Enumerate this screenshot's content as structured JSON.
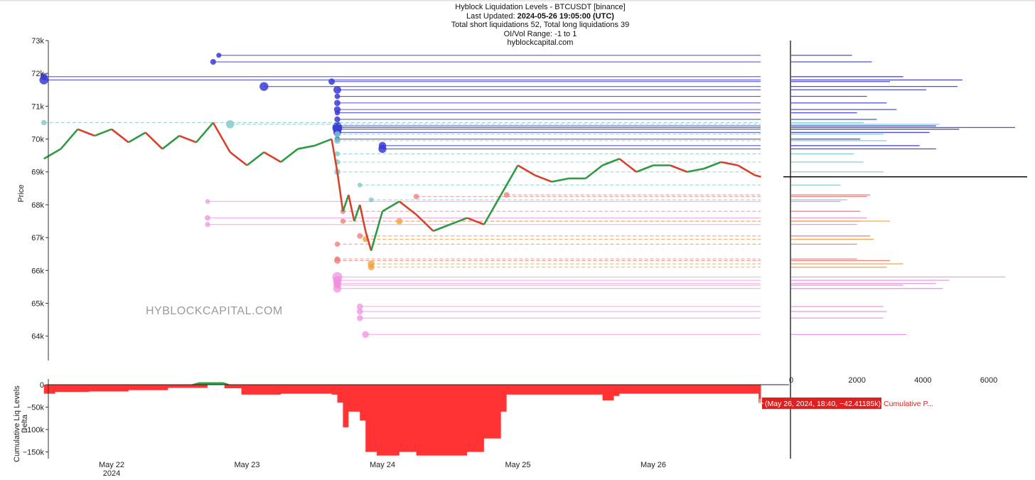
{
  "title": {
    "line1": "Hyblock Liquidation Levels - BTCUSDT [binance]",
    "line2_label": "Last Updated:",
    "line2_value": "2024-05-26 19:05:00 (UTC)",
    "line3": "Total short liquidations 52, Total long liquidations 39",
    "line4": "OI/Vol Range: -1 to 1",
    "line5": "hyblockcapital.com"
  },
  "watermark": "HYBLOCKCAPITAL.COM",
  "tooltip": {
    "value": "(May 26, 2024, 18:40, −42.41185k)",
    "series": "Cumulative P..."
  },
  "colors": {
    "up": "#2e9b44",
    "down": "#d9402c",
    "short_liq": "#3b3bd6",
    "short_liq_light": "#7fc8c8",
    "long_liq": "#f07a7a",
    "long_liq_orange": "#f3a13a",
    "long_liq_pink": "#f08ce0",
    "delta_neg": "#ff3333",
    "delta_pos": "#2ea043",
    "current_price_line": "#000000"
  },
  "chart_data": [
    {
      "type": "line",
      "name": "price",
      "ylabel": "Price",
      "ylim": [
        63300,
        73000
      ],
      "y_ticks": [
        64000,
        65000,
        66000,
        67000,
        68000,
        69000,
        70000,
        71000,
        72000,
        73000
      ],
      "y_tick_labels": [
        "64k",
        "65k",
        "66k",
        "67k",
        "68k",
        "69k",
        "70k",
        "71k",
        "72k",
        "73k"
      ],
      "x_tick_labels": [
        "May 22",
        "May 23",
        "May 24",
        "May 25",
        "May 26"
      ],
      "x_year_label": "2024",
      "xlim": [
        "2024-05-21 12:00",
        "2024-05-27 00:00"
      ],
      "series": [
        {
          "values": [
            [
              "2024-05-21 12:00",
              69400
            ],
            [
              "2024-05-21 15:00",
              69700
            ],
            [
              "2024-05-21 18:00",
              70300
            ],
            [
              "2024-05-21 21:00",
              70100
            ],
            [
              "2024-05-22 00:00",
              70300
            ],
            [
              "2024-05-22 03:00",
              69900
            ],
            [
              "2024-05-22 06:00",
              70200
            ],
            [
              "2024-05-22 09:00",
              69700
            ],
            [
              "2024-05-22 12:00",
              70100
            ],
            [
              "2024-05-22 15:00",
              69900
            ],
            [
              "2024-05-22 18:00",
              70500
            ],
            [
              "2024-05-22 21:00",
              69600
            ],
            [
              "2024-05-23 00:00",
              69200
            ],
            [
              "2024-05-23 03:00",
              69600
            ],
            [
              "2024-05-23 06:00",
              69300
            ],
            [
              "2024-05-23 09:00",
              69700
            ],
            [
              "2024-05-23 12:00",
              69800
            ],
            [
              "2024-05-23 15:00",
              70000
            ],
            [
              "2024-05-23 16:00",
              69000
            ],
            [
              "2024-05-23 17:00",
              67800
            ],
            [
              "2024-05-23 18:00",
              68300
            ],
            [
              "2024-05-23 19:00",
              67500
            ],
            [
              "2024-05-23 20:00",
              68000
            ],
            [
              "2024-05-23 21:00",
              67200
            ],
            [
              "2024-05-23 22:00",
              66600
            ],
            [
              "2024-05-24 00:00",
              67800
            ],
            [
              "2024-05-24 03:00",
              68100
            ],
            [
              "2024-05-24 06:00",
              67700
            ],
            [
              "2024-05-24 09:00",
              67200
            ],
            [
              "2024-05-24 12:00",
              67400
            ],
            [
              "2024-05-24 15:00",
              67600
            ],
            [
              "2024-05-24 18:00",
              67400
            ],
            [
              "2024-05-24 21:00",
              68300
            ],
            [
              "2024-05-25 00:00",
              69200
            ],
            [
              "2024-05-25 03:00",
              68900
            ],
            [
              "2024-05-25 06:00",
              68700
            ],
            [
              "2024-05-25 09:00",
              68800
            ],
            [
              "2024-05-25 12:00",
              68800
            ],
            [
              "2024-05-25 15:00",
              69200
            ],
            [
              "2024-05-25 18:00",
              69400
            ],
            [
              "2024-05-25 21:00",
              69000
            ],
            [
              "2024-05-26 00:00",
              69200
            ],
            [
              "2024-05-26 03:00",
              69200
            ],
            [
              "2024-05-26 06:00",
              69000
            ],
            [
              "2024-05-26 09:00",
              69100
            ],
            [
              "2024-05-26 12:00",
              69300
            ],
            [
              "2024-05-26 15:00",
              69200
            ],
            [
              "2024-05-26 18:00",
              68900
            ],
            [
              "2024-05-26 19:05",
              68850
            ]
          ]
        }
      ]
    },
    {
      "type": "bar",
      "name": "liquidation levels",
      "orientation": "horizontal",
      "x_ticks": [
        0,
        2000,
        4000,
        6000
      ],
      "short_levels": [
        {
          "price": 72550,
          "size": 1850,
          "from": "2024-05-22 19:00"
        },
        {
          "price": 72350,
          "size": 2450,
          "from": "2024-05-22 18:00"
        },
        {
          "price": 71900,
          "size": 3400,
          "from": "2024-05-21 12:00"
        },
        {
          "price": 71800,
          "size": 5200,
          "from": "2024-05-21 12:00"
        },
        {
          "price": 71750,
          "size": 3000,
          "from": "2024-05-23 15:00"
        },
        {
          "price": 71600,
          "size": 5050,
          "from": "2024-05-23 03:00"
        },
        {
          "price": 71500,
          "size": 4100,
          "from": "2024-05-23 16:00"
        },
        {
          "price": 71300,
          "size": 2300,
          "from": "2024-05-23 16:00"
        },
        {
          "price": 71100,
          "size": 2900,
          "from": "2024-05-23 16:00"
        },
        {
          "price": 70900,
          "size": 3200,
          "from": "2024-05-23 16:00"
        },
        {
          "price": 70800,
          "size": 2000,
          "from": "2024-05-23 16:00"
        },
        {
          "price": 70600,
          "size": 2600,
          "from": "2024-05-23 16:00"
        },
        {
          "price": 70400,
          "size": 4400,
          "from": "2024-05-23 16:00"
        },
        {
          "price": 70350,
          "size": 6800,
          "from": "2024-05-23 16:00"
        },
        {
          "price": 70300,
          "size": 5100,
          "from": "2024-05-23 16:00"
        },
        {
          "price": 70200,
          "size": 4200,
          "from": "2024-05-23 16:00"
        },
        {
          "price": 70000,
          "size": 2100,
          "from": "2024-05-23 16:00"
        },
        {
          "price": 69800,
          "size": 3900,
          "from": "2024-05-24 00:00"
        },
        {
          "price": 69700,
          "size": 4400,
          "from": "2024-05-24 00:00"
        }
      ],
      "short_levels_light": [
        {
          "price": 70500,
          "size": 2200,
          "from": "2024-05-21 12:00"
        },
        {
          "price": 70450,
          "size": 4500,
          "from": "2024-05-22 21:00"
        },
        {
          "price": 70150,
          "size": 2800,
          "from": "2024-05-23 16:00"
        },
        {
          "price": 69950,
          "size": 2900,
          "from": "2024-05-23 16:00"
        },
        {
          "price": 69550,
          "size": 1900,
          "from": "2024-05-23 16:00"
        },
        {
          "price": 69300,
          "size": 2200,
          "from": "2024-05-23 16:00"
        },
        {
          "price": 69000,
          "size": 2800,
          "from": "2024-05-23 16:00"
        },
        {
          "price": 68600,
          "size": 1500,
          "from": "2024-05-23 20:00"
        },
        {
          "price": 68150,
          "size": 1700,
          "from": "2024-05-23 22:00"
        }
      ],
      "long_levels": [
        {
          "price": 68300,
          "size": 2400,
          "from": "2024-05-24 22:00"
        },
        {
          "price": 68250,
          "size": 2300,
          "from": "2024-05-24 06:00"
        },
        {
          "price": 67800,
          "size": 2100,
          "from": "2024-05-23 17:00"
        },
        {
          "price": 67500,
          "size": 2100,
          "from": "2024-05-23 17:00"
        },
        {
          "price": 67050,
          "size": 2400,
          "from": "2024-05-23 20:00"
        },
        {
          "price": 66800,
          "size": 2000,
          "from": "2024-05-23 16:00"
        },
        {
          "price": 66350,
          "size": 2000,
          "from": "2024-05-23 16:00"
        },
        {
          "price": 66300,
          "size": 3000,
          "from": "2024-05-23 16:00"
        }
      ],
      "long_levels_orange": [
        {
          "price": 67500,
          "size": 3000,
          "from": "2024-05-24 03:00"
        },
        {
          "price": 66950,
          "size": 2500,
          "from": "2024-05-23 21:00"
        },
        {
          "price": 66200,
          "size": 3400,
          "from": "2024-05-23 22:00"
        },
        {
          "price": 66100,
          "size": 2900,
          "from": "2024-05-23 22:00"
        }
      ],
      "long_levels_pink": [
        {
          "price": 68100,
          "size": 1500,
          "from": "2024-05-22 17:00"
        },
        {
          "price": 67600,
          "size": 2300,
          "from": "2024-05-22 17:00"
        },
        {
          "price": 67400,
          "size": 2000,
          "from": "2024-05-22 17:00"
        },
        {
          "price": 65800,
          "size": 6500,
          "from": "2024-05-23 16:00"
        },
        {
          "price": 65700,
          "size": 4800,
          "from": "2024-05-23 16:00"
        },
        {
          "price": 65600,
          "size": 4400,
          "from": "2024-05-23 16:00"
        },
        {
          "price": 65550,
          "size": 3400,
          "from": "2024-05-23 16:00"
        },
        {
          "price": 65450,
          "size": 4600,
          "from": "2024-05-23 16:00"
        },
        {
          "price": 64900,
          "size": 2800,
          "from": "2024-05-23 20:00"
        },
        {
          "price": 64750,
          "size": 2900,
          "from": "2024-05-23 20:00"
        },
        {
          "price": 64550,
          "size": 2800,
          "from": "2024-05-23 20:00"
        },
        {
          "price": 64050,
          "size": 3500,
          "from": "2024-05-23 21:00"
        }
      ],
      "current_price": 68850
    },
    {
      "type": "area",
      "name": "cumulative liq levels delta",
      "ylabel": "Cumulative Liq Levels Delta",
      "ylim": [
        -165000,
        8000
      ],
      "y_ticks": [
        0,
        -50000,
        -100000,
        -150000
      ],
      "y_tick_labels": [
        "0",
        "−50k",
        "−100k",
        "−150k"
      ],
      "series": [
        {
          "name": "Cumulative P...",
          "values": [
            [
              "2024-05-21 12:00",
              -20000
            ],
            [
              "2024-05-21 14:00",
              -16000
            ],
            [
              "2024-05-21 20:00",
              -15000
            ],
            [
              "2024-05-22 03:00",
              -12000
            ],
            [
              "2024-05-22 10:00",
              -7000
            ],
            [
              "2024-05-22 17:00",
              5000
            ],
            [
              "2024-05-22 20:00",
              -8000
            ],
            [
              "2024-05-22 23:00",
              -22000
            ],
            [
              "2024-05-23 06:00",
              -20000
            ],
            [
              "2024-05-23 15:00",
              -22000
            ],
            [
              "2024-05-23 16:00",
              -40000
            ],
            [
              "2024-05-23 17:00",
              -95000
            ],
            [
              "2024-05-23 18:00",
              -60000
            ],
            [
              "2024-05-23 20:00",
              -80000
            ],
            [
              "2024-05-23 21:00",
              -150000
            ],
            [
              "2024-05-23 23:00",
              -158000
            ],
            [
              "2024-05-24 03:00",
              -150000
            ],
            [
              "2024-05-24 06:00",
              -158000
            ],
            [
              "2024-05-24 12:00",
              -158000
            ],
            [
              "2024-05-24 15:00",
              -150000
            ],
            [
              "2024-05-24 18:00",
              -120000
            ],
            [
              "2024-05-24 21:00",
              -60000
            ],
            [
              "2024-05-24 22:00",
              -22000
            ],
            [
              "2024-05-25 12:00",
              -22000
            ],
            [
              "2024-05-25 15:00",
              -35000
            ],
            [
              "2024-05-25 17:00",
              -25000
            ],
            [
              "2024-05-25 18:00",
              -20000
            ],
            [
              "2024-05-26 18:00",
              -20000
            ],
            [
              "2024-05-26 18:40",
              -42411.85
            ],
            [
              "2024-05-26 19:05",
              -42411.85
            ]
          ]
        }
      ]
    }
  ]
}
